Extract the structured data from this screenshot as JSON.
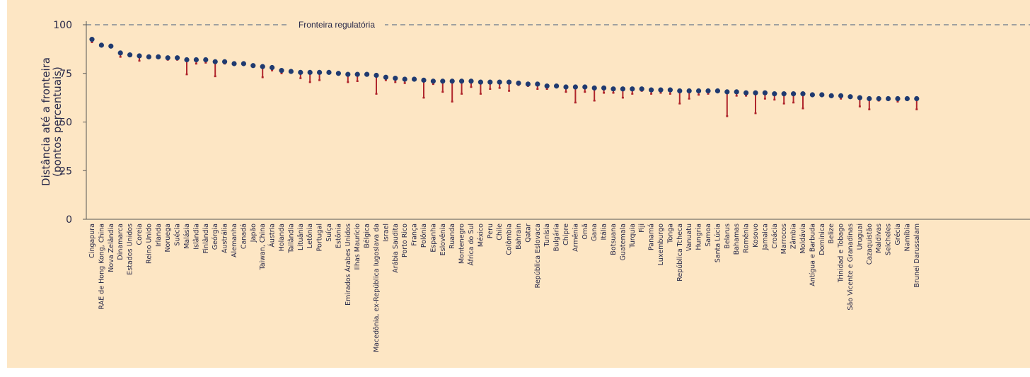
{
  "chart_data": {
    "type": "dot",
    "ylabel": [
      "Distância até a fronteira",
      "(pontos percentuais)"
    ],
    "reference_line": {
      "value": 100,
      "label": "Fronteira regulatória"
    },
    "ylim": [
      0,
      100
    ],
    "yticks": [
      0,
      25,
      50,
      75,
      100
    ],
    "categories": [
      "Cingapura",
      "RAE de Hong Kong, China",
      "Nova Zelândia",
      "Dinamarca",
      "Estados Unidos",
      "Coreia",
      "Reino Unido",
      "Irlanda",
      "Noruega",
      "Suécia",
      "Malásia",
      "Islândia",
      "Finlândia",
      "Geórgia",
      "Austrália",
      "Alemanha",
      "Canadá",
      "Japão",
      "Taiwan, China",
      "Áustria",
      "Holanda",
      "Tailândia",
      "Lituânia",
      "Letônia",
      "Portugal",
      "Suíça",
      "Estônia",
      "Emirados Árabes Unidos",
      "Ilhas Maurício",
      "Bélgica",
      "Macedônia, ex-República Iugoslava da",
      "Israel",
      "Arábia Saudita",
      "Porto Rico",
      "França",
      "Polônia",
      "Espanha",
      "Eslovênia",
      "Ruanda",
      "Montenegro",
      "África do Sul",
      "México",
      "Peru",
      "Chile",
      "Colômbia",
      "Bahrain",
      "Qatar",
      "República Eslovaca",
      "Tunísia",
      "Bulgária",
      "Chipre",
      "Armênia",
      "Omã",
      "Gana",
      "Itália",
      "Botsuana",
      "Guatemala",
      "Turquia",
      "Fiji",
      "Panamá",
      "Luxemburgo",
      "Tonga",
      "República Tcheca",
      "Vanuatu",
      "Hungria",
      "Samoa",
      "Santa Lúcia",
      "Belarus",
      "Bahamas",
      "Romênia",
      "Kosovo",
      "Jamaica",
      "Croácia",
      "Marrocos",
      "Zâmbia",
      "Moldávia",
      "Antígua e Barbuda",
      "Dominica",
      "Belize",
      "Trinidad e Tobago",
      "São Vicente e Granadinas",
      "Uruguai",
      "Cazaquistão",
      "Maldivas",
      "Seicheles",
      "Grécia",
      "Namíbia",
      "Brunei Darussalam"
    ],
    "series": [
      {
        "color": "#1f3a70",
        "values": [
          92.5,
          89.5,
          89,
          85.5,
          84.5,
          84,
          83.5,
          83.5,
          83,
          83,
          82,
          82,
          82,
          81,
          81,
          80,
          80,
          79,
          78.5,
          78,
          76.5,
          76,
          75.5,
          75.5,
          75.5,
          75.5,
          75,
          74.5,
          74.5,
          74.5,
          74,
          73,
          72.5,
          72,
          72,
          71.5,
          71,
          71,
          71,
          71,
          71,
          70.5,
          70.5,
          70.5,
          70.5,
          70,
          69.5,
          69.5,
          68.5,
          68.5,
          68,
          68,
          68,
          67.5,
          67.5,
          67,
          67,
          67,
          67,
          66.5,
          66.5,
          66.5,
          66,
          66,
          66,
          66,
          66,
          65.5,
          65.5,
          65,
          65,
          65,
          64.5,
          64.5,
          64.5,
          64.5,
          64,
          64,
          63.5,
          63.5,
          63,
          62.5,
          62,
          62,
          62,
          62,
          62,
          62
        ]
      },
      {
        "color": "#b0262c",
        "values": [
          91,
          89,
          88.5,
          83.5,
          84,
          81.5,
          83,
          83,
          82,
          82,
          74.5,
          80,
          80.5,
          73.5,
          80,
          79.5,
          79.5,
          78.5,
          73,
          76.5,
          75,
          75.5,
          72.5,
          70.5,
          71.5,
          75,
          74.5,
          70.5,
          71,
          74,
          64.5,
          71.5,
          70.5,
          70,
          71.5,
          62.5,
          69.5,
          65.5,
          60.5,
          64.5,
          68,
          64.5,
          67,
          67.5,
          66,
          69,
          68.5,
          67,
          67,
          68,
          65.5,
          60,
          65.5,
          61,
          65,
          65,
          62.5,
          64.5,
          66,
          64.5,
          65,
          64.5,
          59.5,
          62,
          64,
          64.5,
          65.5,
          53,
          63.5,
          63.5,
          54.5,
          62,
          61.5,
          59.5,
          60,
          57,
          63.5,
          63.5,
          63,
          62,
          62.5,
          58,
          56.5,
          61,
          61.5,
          60.5,
          61.5,
          56.5
        ]
      }
    ]
  }
}
